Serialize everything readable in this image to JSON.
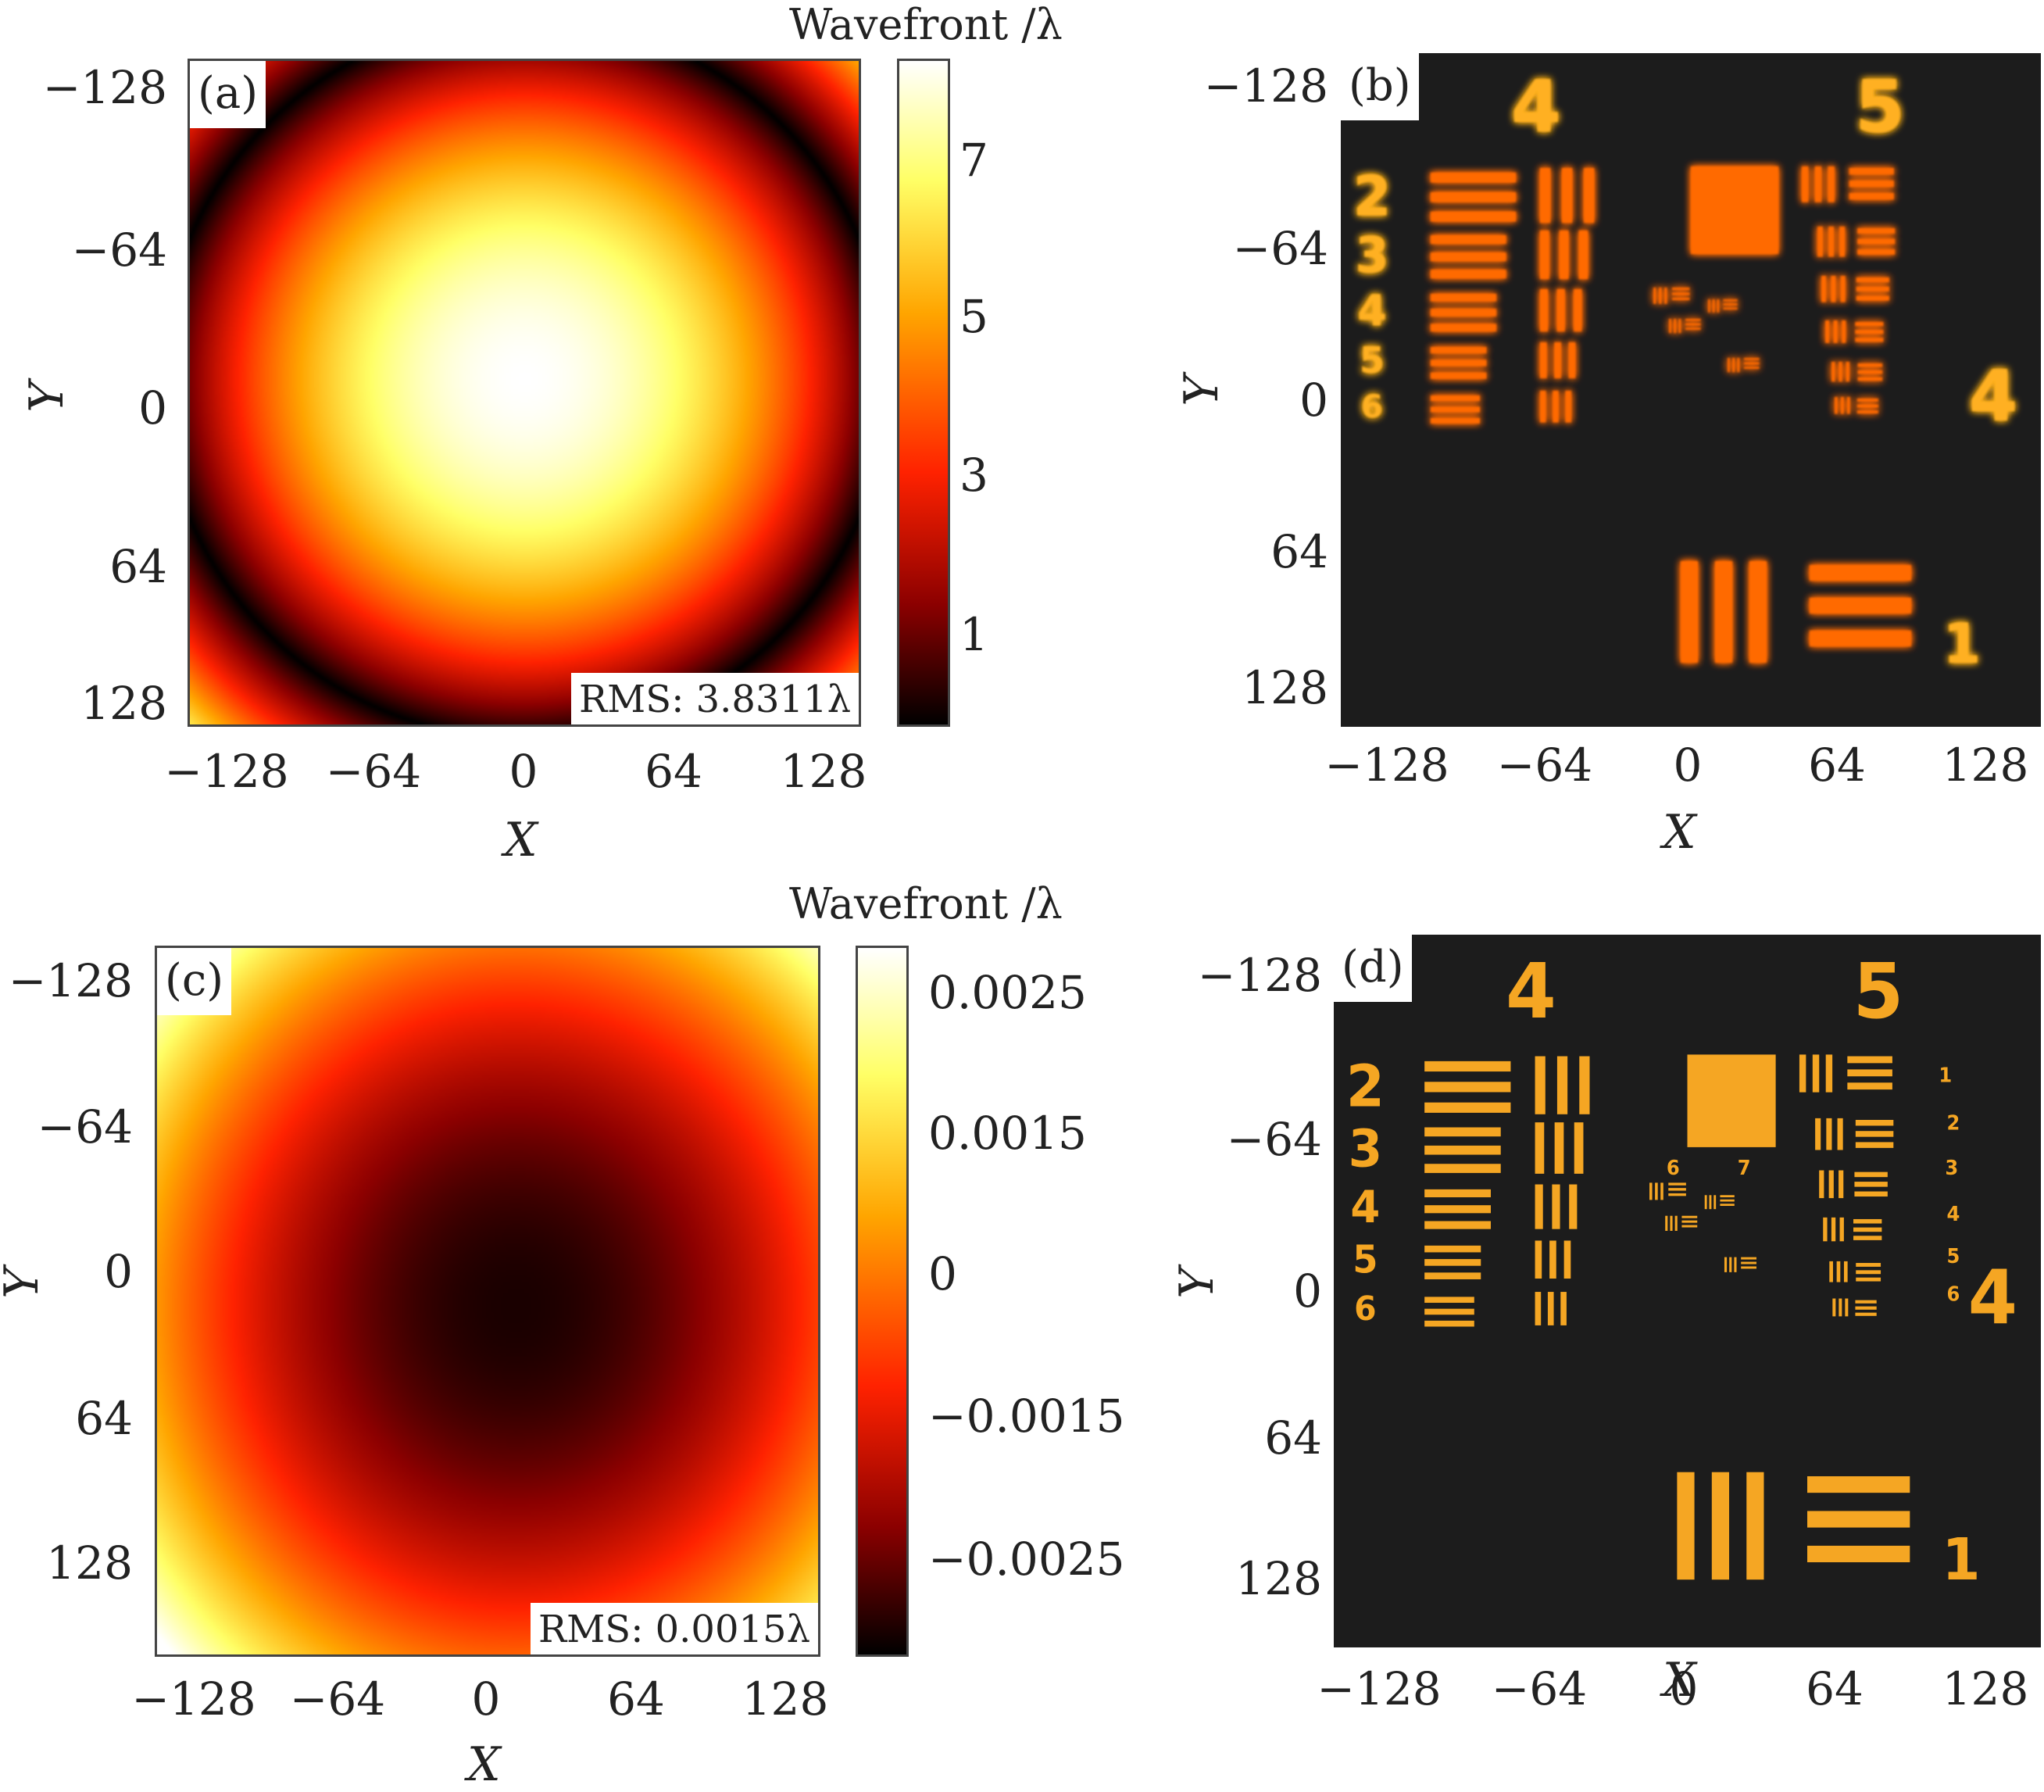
{
  "chart_data": [
    {
      "type": "heatmap",
      "panel_label": "(a)",
      "xlabel": "X",
      "ylabel": "Y",
      "x_ticks": [
        "−128",
        "−64",
        "0",
        "64",
        "128"
      ],
      "y_ticks": [
        "−128",
        "−64",
        "0",
        "64",
        "128"
      ],
      "xlim": [
        -140,
        140
      ],
      "ylim": [
        -140,
        140
      ],
      "colorbar_title": "Wavefront /λ",
      "colorbar_ticks": [
        "7",
        "5",
        "3",
        "1"
      ],
      "colorbar_range": [
        0,
        8.3
      ],
      "rms_label": "RMS: 3.8311λ",
      "field": "defocus wavefront, maximum at center (~8.3λ), dark ring (~0λ) near radius 150, rising toward corners",
      "colormap": [
        "#000000",
        "#8b0000",
        "#ff2200",
        "#ffa500",
        "#ffff66",
        "#ffffff"
      ]
    },
    {
      "type": "heatmap",
      "panel_label": "(b)",
      "xlabel": "X",
      "ylabel": "Y",
      "x_ticks": [
        "−128",
        "−64",
        "0",
        "64",
        "128"
      ],
      "y_ticks": [
        "−128",
        "−64",
        "0",
        "64",
        "128"
      ],
      "xlim": [
        -140,
        140
      ],
      "ylim": [
        -140,
        140
      ],
      "content": "blurred USAF 1951 resolution target image",
      "target_digits": [
        "4",
        "5",
        "2",
        "3",
        "4",
        "5",
        "6",
        "4",
        "1"
      ],
      "colormap": [
        "#1c1c1c",
        "#ff2a00",
        "#ffcc33"
      ]
    },
    {
      "type": "heatmap",
      "panel_label": "(c)",
      "xlabel": "X",
      "ylabel": "Y",
      "x_ticks": [
        "−128",
        "−64",
        "0",
        "64",
        "128"
      ],
      "y_ticks": [
        "−128",
        "−64",
        "0",
        "64",
        "128"
      ],
      "xlim": [
        -140,
        140
      ],
      "ylim": [
        -140,
        140
      ],
      "colorbar_title": "Wavefront /λ",
      "colorbar_ticks": [
        "0.0025",
        "0.0015",
        "0",
        "−0.0015",
        "−0.0025"
      ],
      "colorbar_range": [
        -0.003,
        0.003
      ],
      "rms_label": "RMS: 0.0015λ",
      "field": "residual wavefront, minimum near center slightly right of origin, increasing toward corners",
      "colormap": [
        "#000000",
        "#8b0000",
        "#ff2200",
        "#ffa500",
        "#ffff66",
        "#ffffff"
      ]
    },
    {
      "type": "heatmap",
      "panel_label": "(d)",
      "xlabel": "X",
      "ylabel": "Y",
      "x_ticks": [
        "−128",
        "−64",
        "0",
        "64",
        "128"
      ],
      "y_ticks": [
        "−128",
        "−64",
        "0",
        "64",
        "128"
      ],
      "xlim": [
        -140,
        140
      ],
      "ylim": [
        -140,
        140
      ],
      "content": "corrected USAF 1951 resolution target image",
      "target_digits": [
        "4",
        "5",
        "2",
        "3",
        "4",
        "5",
        "6",
        "4",
        "1"
      ],
      "small_digits": [
        "1",
        "2",
        "3",
        "4",
        "5",
        "6",
        "6",
        "7"
      ],
      "colormap": [
        "#1c1c1c",
        "#f5a623"
      ]
    }
  ]
}
